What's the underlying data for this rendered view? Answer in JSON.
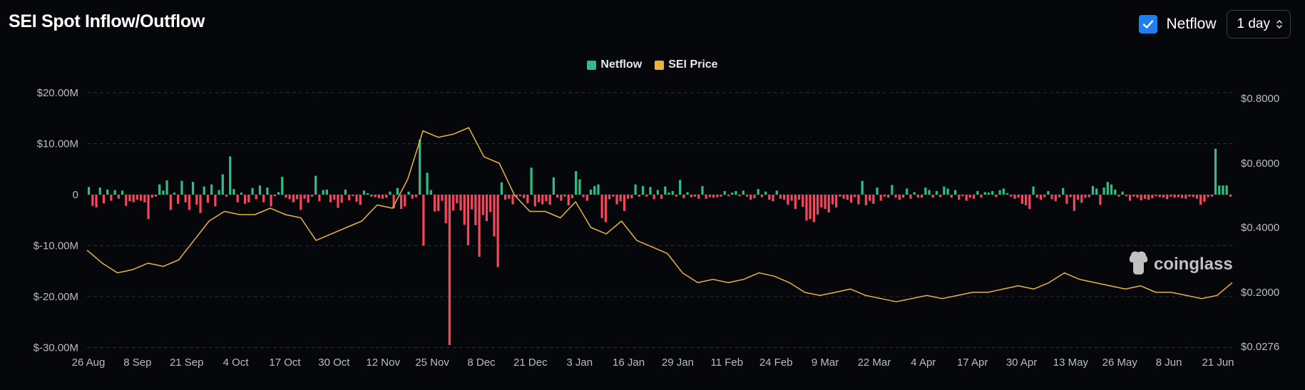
{
  "header": {
    "title": "SEI Spot Inflow/Outflow",
    "netflow_toggle_label": "Netflow",
    "netflow_checked": true,
    "interval_value": "1 day"
  },
  "legend": [
    {
      "label": "Netflow",
      "color": "#2ebd85"
    },
    {
      "label": "SEI Price",
      "color": "#e8b341"
    }
  ],
  "watermark": "coinglass",
  "colors": {
    "inflow": "#2ebd85",
    "outflow": "#f6465d",
    "price": "#e8b341",
    "grid": "#2a2d33"
  },
  "chart_data": {
    "type": "bar+line",
    "title": "SEI Spot Inflow/Outflow",
    "x_tick_labels": [
      "26 Aug",
      "8 Sep",
      "21 Sep",
      "4 Oct",
      "17 Oct",
      "30 Oct",
      "12 Nov",
      "25 Nov",
      "8 Dec",
      "21 Dec",
      "3 Jan",
      "16 Jan",
      "29 Jan",
      "11 Feb",
      "24 Feb",
      "9 Mar",
      "22 Mar",
      "4 Apr",
      "17 Apr",
      "30 Apr",
      "13 May",
      "26 May",
      "8 Jun",
      "21 Jun"
    ],
    "y_left": {
      "ticks": [
        "$20.00M",
        "$10.00M",
        "0",
        "$-10.00M",
        "$-20.00M",
        "$-30.00M"
      ],
      "values": [
        20,
        10,
        0,
        -10,
        -20,
        -30
      ],
      "unit": "M USD"
    },
    "y_right": {
      "ticks": [
        "$0.8000",
        "$0.6000",
        "$0.4000",
        "$0.2000",
        "$0.0276"
      ],
      "values": [
        0.8,
        0.6,
        0.4,
        0.2,
        0.0276
      ]
    },
    "series": [
      {
        "name": "Netflow",
        "axis": "left",
        "values": [
          1.5,
          -2.2,
          -2.5,
          1.4,
          -1.7,
          1.0,
          -1.2,
          0.9,
          -0.8,
          0.8,
          -2.2,
          -1.3,
          -1.5,
          -1.0,
          -1.2,
          -1.5,
          -4.8,
          -0.6,
          -0.4,
          2.0,
          0.8,
          2.8,
          -3.0,
          0.4,
          -1.8,
          2.7,
          -1.5,
          -3.0,
          2.5,
          -2.0,
          -3.6,
          1.6,
          -1.6,
          2.0,
          -2.3,
          0.9,
          4.0,
          -0.4,
          7.5,
          1.1,
          -1.5,
          0.4,
          -1.8,
          -1.5,
          1.3,
          -0.9,
          1.8,
          -1.5,
          1.4,
          -2.3,
          -0.3,
          0.5,
          3.5,
          -0.6,
          -0.9,
          -1.5,
          -0.9,
          -3.0,
          -0.8,
          -1.6,
          -0.4,
          3.7,
          -1.3,
          0.9,
          1.0,
          -1.5,
          -1.0,
          -2.6,
          -1.6,
          1.0,
          -1.1,
          -0.3,
          -1.4,
          -2.0,
          0.8,
          0.3,
          -0.4,
          -0.5,
          -0.7,
          -0.8,
          -0.6,
          0.6,
          -2.7,
          1.3,
          -2.8,
          -2.3,
          0.6,
          -0.8,
          -0.5,
          10.8,
          -10.0,
          4.3,
          0.9,
          -3.3,
          -3.2,
          -1.2,
          -5.6,
          -29.5,
          -3.1,
          -1.7,
          -3.1,
          -5.9,
          -9.9,
          -2.9,
          -6.0,
          -12.2,
          -4.0,
          -5.2,
          -3.4,
          -8.2,
          -14.2,
          2.4,
          -1.0,
          -0.8,
          -1.9,
          -0.5,
          -0.3,
          -0.7,
          -1.7,
          5.3,
          -2.3,
          -1.5,
          -1.9,
          -1.3,
          -2.0,
          3.4,
          -0.6,
          -1.2,
          -0.4,
          -2.1,
          -0.7,
          4.6,
          3.0,
          -0.5,
          -1.2,
          1.0,
          1.7,
          2.0,
          -4.6,
          -5.4,
          -0.9,
          -0.4,
          -1.9,
          -1.3,
          -3.2,
          -0.8,
          -0.7,
          2.0,
          -0.4,
          1.7,
          -0.4,
          1.5,
          -0.9,
          0.9,
          -0.8,
          1.6,
          0.4,
          0.7,
          -0.4,
          2.9,
          -0.7,
          0.5,
          -0.5,
          -0.4,
          -0.8,
          1.7,
          -0.8,
          -0.5,
          -0.6,
          -0.5,
          -0.4,
          0.7,
          -0.3,
          0.4,
          0.7,
          -0.3,
          0.8,
          -0.4,
          -1.0,
          -0.7,
          1.1,
          -0.5,
          0.6,
          -1.0,
          -1.3,
          0.8,
          -0.8,
          -1.0,
          -2.0,
          -1.2,
          -2.8,
          -1.0,
          -2.4,
          -5.1,
          -4.8,
          -5.4,
          -3.9,
          -2.5,
          -2.8,
          -3.5,
          -1.9,
          -2.5,
          -0.4,
          -0.8,
          -1.0,
          -1.6,
          -0.5,
          -1.9,
          2.7,
          -2.1,
          -1.2,
          -1.8,
          1.4,
          -1.2,
          -0.4,
          -0.6,
          1.9,
          -0.6,
          -1.0,
          -0.6,
          1.2,
          -0.8,
          0.5,
          -0.6,
          -0.6,
          1.4,
          0.9,
          -0.6,
          0.7,
          -0.5,
          1.6,
          1.2,
          -0.6,
          0.9,
          -1.0,
          -0.3,
          -1.2,
          -0.6,
          -0.8,
          0.7,
          -0.6,
          0.5,
          0.4,
          0.7,
          -0.5,
          0.9,
          1.2,
          0.3,
          -0.4,
          -0.8,
          -0.6,
          -1.8,
          -2.1,
          -2.8,
          1.6,
          -0.6,
          -1.0,
          -0.5,
          0.7,
          -0.9,
          -1.3,
          -0.5,
          1.3,
          -1.8,
          -0.5,
          -3.2,
          -1.0,
          -1.6,
          -0.6,
          -0.5,
          1.7,
          1.2,
          -2.0,
          1.4,
          2.5,
          2.0,
          1.0,
          -0.4,
          0.6,
          -0.3,
          -1.2,
          -0.4,
          -0.6,
          -1.1,
          -0.8,
          -1.0,
          -0.7,
          -0.3,
          -0.5,
          -0.6,
          -0.9,
          -0.4,
          -0.6,
          -0.5,
          -0.7,
          -0.8,
          -0.4,
          -0.5,
          -0.8,
          -2.0,
          -1.4,
          -0.5,
          -0.4,
          9.0,
          1.8,
          1.8,
          1.8,
          -0.4
        ]
      },
      {
        "name": "SEI Price",
        "axis": "right",
        "dates": [
          "26 Aug",
          "30 Aug",
          "3 Sep",
          "7 Sep",
          "11 Sep",
          "15 Sep",
          "19 Sep",
          "23 Sep",
          "27 Sep",
          "1 Oct",
          "5 Oct",
          "9 Oct",
          "13 Oct",
          "17 Oct",
          "21 Oct",
          "25 Oct",
          "29 Oct",
          "2 Nov",
          "6 Nov",
          "10 Nov",
          "14 Nov",
          "18 Nov",
          "22 Nov",
          "26 Nov",
          "30 Nov",
          "4 Dec",
          "8 Dec",
          "12 Dec",
          "16 Dec",
          "20 Dec",
          "24 Dec",
          "28 Dec",
          "1 Jan",
          "5 Jan",
          "9 Jan",
          "13 Jan",
          "17 Jan",
          "21 Jan",
          "25 Jan",
          "29 Jan",
          "2 Feb",
          "6 Feb",
          "10 Feb",
          "14 Feb",
          "18 Feb",
          "22 Feb",
          "26 Feb",
          "2 Mar",
          "6 Mar",
          "10 Mar",
          "14 Mar",
          "18 Mar",
          "22 Mar",
          "26 Mar",
          "30 Mar",
          "3 Apr",
          "7 Apr",
          "11 Apr",
          "15 Apr",
          "19 Apr",
          "23 Apr",
          "27 Apr",
          "1 May",
          "5 May",
          "9 May",
          "13 May",
          "17 May",
          "21 May",
          "25 May",
          "29 May",
          "2 Jun",
          "6 Jun",
          "10 Jun",
          "14 Jun",
          "18 Jun",
          "22 Jun"
        ],
        "values": [
          0.33,
          0.29,
          0.26,
          0.27,
          0.29,
          0.28,
          0.3,
          0.36,
          0.42,
          0.45,
          0.44,
          0.44,
          0.46,
          0.44,
          0.43,
          0.36,
          0.38,
          0.4,
          0.42,
          0.47,
          0.46,
          0.55,
          0.7,
          0.68,
          0.69,
          0.71,
          0.62,
          0.6,
          0.5,
          0.45,
          0.45,
          0.43,
          0.48,
          0.4,
          0.38,
          0.42,
          0.36,
          0.34,
          0.32,
          0.26,
          0.23,
          0.24,
          0.23,
          0.24,
          0.26,
          0.25,
          0.23,
          0.2,
          0.19,
          0.2,
          0.21,
          0.19,
          0.18,
          0.17,
          0.18,
          0.19,
          0.18,
          0.19,
          0.2,
          0.2,
          0.21,
          0.22,
          0.21,
          0.23,
          0.26,
          0.24,
          0.23,
          0.22,
          0.21,
          0.22,
          0.2,
          0.2,
          0.19,
          0.18,
          0.19,
          0.23
        ]
      }
    ],
    "grid": true,
    "legend_position": "top-center"
  }
}
